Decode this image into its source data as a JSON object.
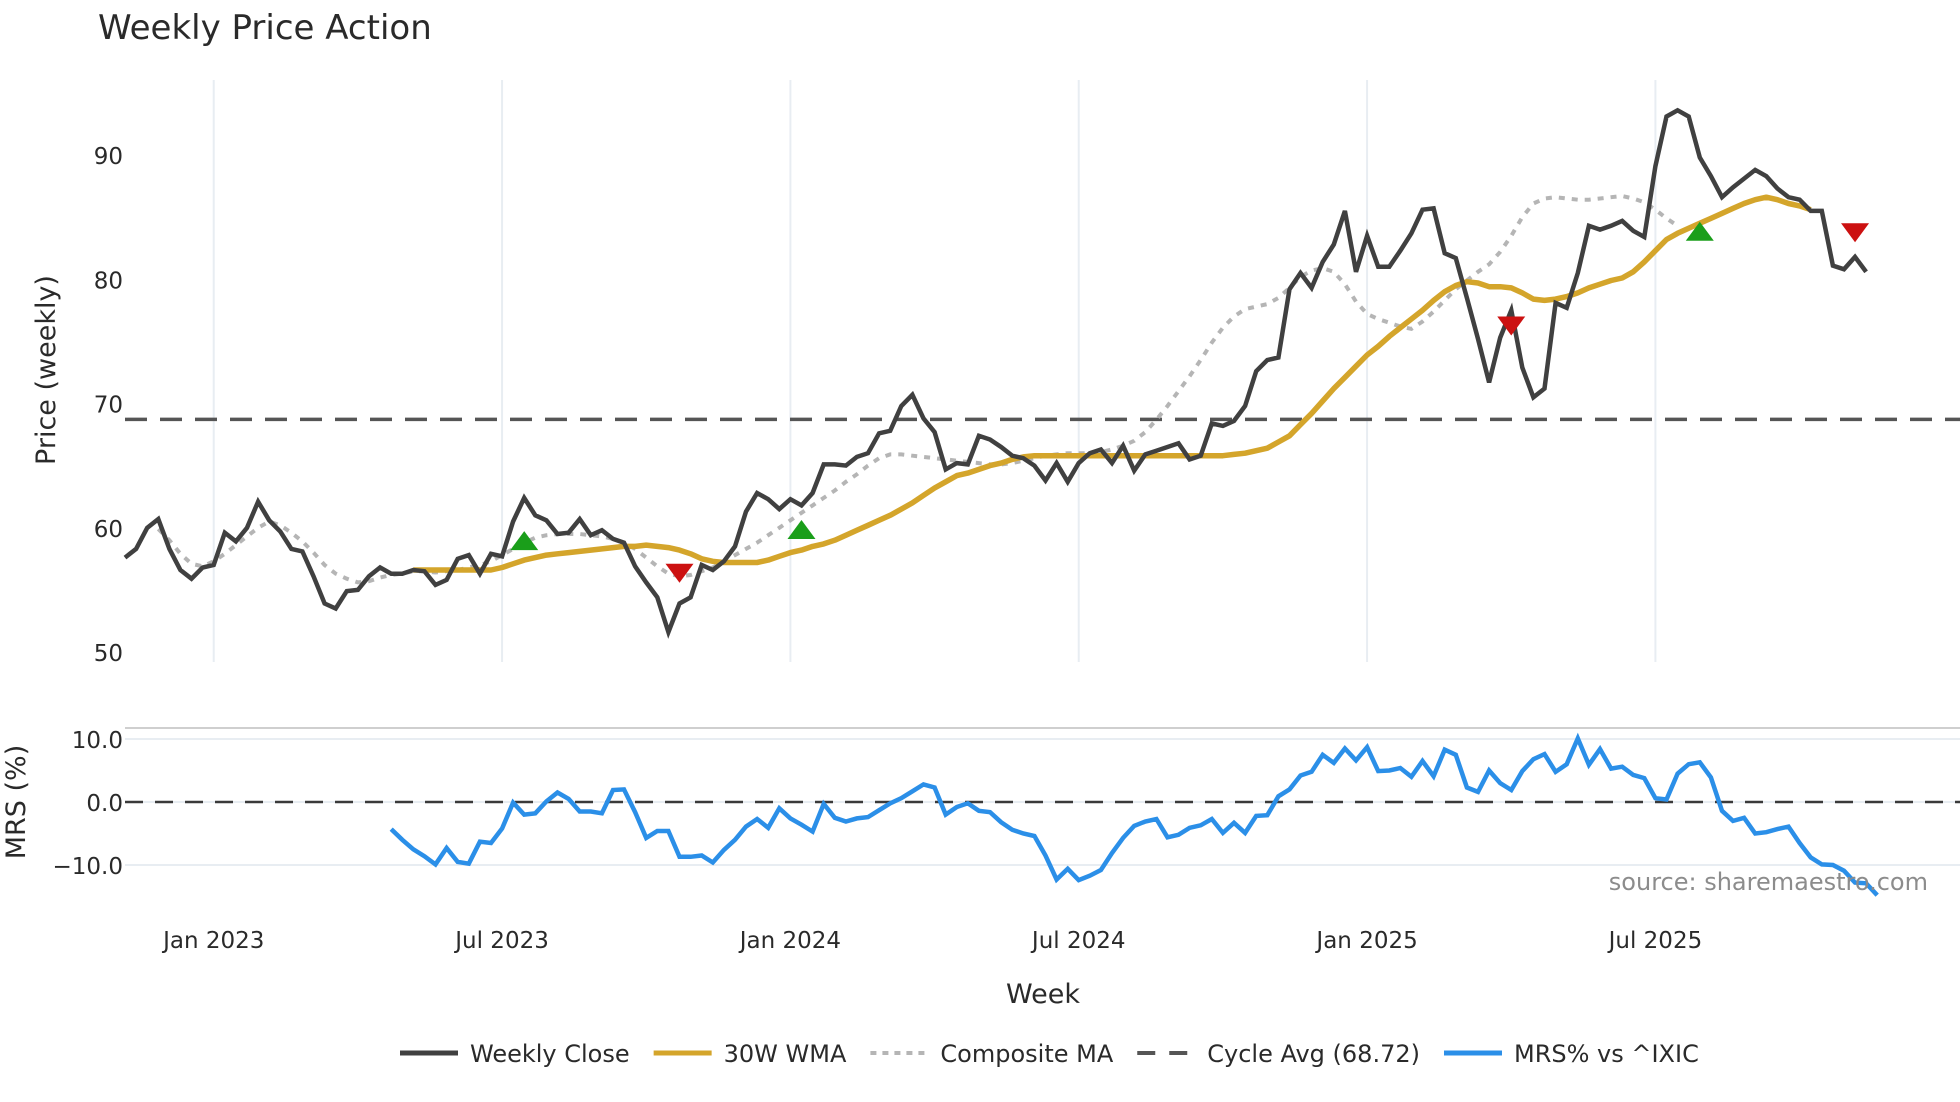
{
  "title": "Weekly Price Action",
  "source_note": "source: sharemaestro.com",
  "xlabel": "Week",
  "price_panel": {
    "ylabel": "Price (weekly)",
    "yticks": [
      "50",
      "60",
      "70",
      "80",
      "90"
    ]
  },
  "mrs_panel": {
    "ylabel": "MRS (%)",
    "yticks": [
      "−10.0",
      "0.0",
      "10.0"
    ]
  },
  "xticks": [
    "Jan 2023",
    "Jul 2023",
    "Jan 2024",
    "Jul 2024",
    "Jan 2025",
    "Jul 2025"
  ],
  "legend": [
    {
      "label": "Weekly Close",
      "color": "#404040",
      "style": "solid"
    },
    {
      "label": "30W WMA",
      "color": "#d4a52b",
      "style": "solid"
    },
    {
      "label": "Composite MA",
      "color": "#b5b5b5",
      "style": "dotted"
    },
    {
      "label": "Cycle Avg (68.72)",
      "color": "#555555",
      "style": "dashed"
    },
    {
      "label": "MRS% vs ^IXIC",
      "color": "#2b8fe8",
      "style": "solid"
    }
  ],
  "colors": {
    "close": "#404040",
    "wma": "#d4a52b",
    "composite": "#b5b5b5",
    "cycle": "#555555",
    "mrs": "#2b8fe8",
    "buy_marker": "#1a9e1a",
    "sell_marker": "#cc1111",
    "grid": "#e8edf2"
  },
  "chart_data": [
    {
      "type": "line",
      "title": "Weekly Price Action",
      "xlabel": "Week",
      "ylabel": "Price (weekly)",
      "ylim": [
        49,
        96
      ],
      "x_start_week_index": 0,
      "x_ticks": {
        "Jan 2023": 8,
        "Jul 2023": 34,
        "Jan 2024": 60,
        "Jul 2024": 86,
        "Jan 2025": 112,
        "Jul 2025": 138
      },
      "series": [
        {
          "name": "Weekly Close",
          "start_index": 0,
          "values": [
            57.6,
            58.3,
            60.0,
            60.7,
            58.3,
            56.6,
            55.9,
            56.8,
            57.0,
            59.6,
            58.9,
            60.0,
            62.1,
            60.6,
            59.7,
            58.3,
            58.1,
            56.1,
            53.9,
            53.5,
            54.9,
            55.0,
            56.1,
            56.8,
            56.3,
            56.3,
            56.6,
            56.5,
            55.4,
            55.8,
            57.5,
            57.8,
            56.3,
            57.9,
            57.7,
            60.5,
            62.4,
            61.0,
            60.6,
            59.5,
            59.6,
            60.7,
            59.4,
            59.8,
            59.1,
            58.8,
            56.9,
            55.6,
            54.4,
            51.6,
            53.9,
            54.4,
            57.0,
            56.6,
            57.3,
            58.5,
            61.3,
            62.8,
            62.3,
            61.5,
            62.3,
            61.8,
            62.8,
            65.1,
            65.1,
            65.0,
            65.7,
            66.0,
            67.6,
            67.8,
            69.8,
            70.7,
            68.8,
            67.7,
            64.7,
            65.2,
            65.1,
            67.4,
            67.1,
            66.5,
            65.8,
            65.6,
            65.0,
            63.8,
            65.2,
            63.7,
            65.2,
            66.0,
            66.3,
            65.2,
            66.6,
            64.6,
            65.9,
            66.2,
            66.5,
            66.8,
            65.5,
            65.8,
            68.4,
            68.2,
            68.6,
            69.8,
            72.6,
            73.5,
            73.7,
            79.2,
            80.5,
            79.3,
            81.4,
            82.8,
            85.5,
            80.6,
            83.5,
            81.0,
            81.0,
            82.3,
            83.7,
            85.6,
            85.7,
            82.1,
            81.7,
            78.5,
            75.2,
            71.7,
            75.3,
            77.5,
            72.9,
            70.5,
            71.2,
            78.1,
            77.7,
            80.5,
            84.3,
            84.0,
            84.3,
            84.7,
            83.9,
            83.4,
            89.1,
            93.1,
            93.6,
            93.1,
            89.8,
            88.3,
            86.6,
            87.4,
            88.1,
            88.8,
            88.3,
            87.3,
            86.6,
            86.4,
            85.5,
            85.5,
            81.1,
            80.8,
            81.8,
            80.6
          ]
        },
        {
          "name": "30W WMA",
          "start_index": 26,
          "values": [
            56.6,
            56.6,
            56.6,
            56.6,
            56.6,
            56.6,
            56.6,
            56.6,
            56.8,
            57.1,
            57.4,
            57.6,
            57.8,
            57.9,
            58.0,
            58.1,
            58.2,
            58.3,
            58.4,
            58.5,
            58.5,
            58.6,
            58.5,
            58.4,
            58.2,
            57.9,
            57.5,
            57.3,
            57.2,
            57.2,
            57.2,
            57.2,
            57.4,
            57.7,
            58.0,
            58.2,
            58.5,
            58.7,
            59.0,
            59.4,
            59.8,
            60.2,
            60.6,
            61.0,
            61.5,
            62.0,
            62.6,
            63.2,
            63.7,
            64.2,
            64.4,
            64.7,
            65.0,
            65.2,
            65.5,
            65.7,
            65.8,
            65.8,
            65.8,
            65.8,
            65.8,
            65.8,
            65.8,
            65.8,
            65.8,
            65.8,
            65.8,
            65.8,
            65.8,
            65.8,
            65.8,
            65.8,
            65.8,
            65.8,
            65.9,
            66.0,
            66.2,
            66.4,
            66.9,
            67.4,
            68.3,
            69.2,
            70.2,
            71.2,
            72.1,
            73.0,
            73.9,
            74.6,
            75.4,
            76.1,
            76.8,
            77.5,
            78.3,
            79.0,
            79.5,
            79.8,
            79.7,
            79.4,
            79.4,
            79.3,
            78.9,
            78.4,
            78.3,
            78.4,
            78.6,
            78.9,
            79.3,
            79.6,
            79.9,
            80.1,
            80.6,
            81.4,
            82.3,
            83.2,
            83.7,
            84.1,
            84.5,
            84.9,
            85.3,
            85.7,
            86.1,
            86.4,
            86.6,
            86.4,
            86.1,
            85.9,
            85.6
          ]
        },
        {
          "name": "Composite MA",
          "start_index": 3,
          "values": [
            59.9,
            59.0,
            57.9,
            57.1,
            56.9,
            57.3,
            57.9,
            58.6,
            59.3,
            60.0,
            60.5,
            60.2,
            59.6,
            58.9,
            58.0,
            57.0,
            56.3,
            55.9,
            55.6,
            55.7,
            56.0,
            56.2,
            56.3,
            56.5,
            56.5,
            56.4,
            56.5,
            56.6,
            56.8,
            57.0,
            57.3,
            57.8,
            58.3,
            58.8,
            59.2,
            59.4,
            59.5,
            59.5,
            59.5,
            59.4,
            59.3,
            59.1,
            58.8,
            58.3,
            57.6,
            56.9,
            56.3,
            56.1,
            56.2,
            56.5,
            56.8,
            57.3,
            57.8,
            58.3,
            58.8,
            59.4,
            60.0,
            60.6,
            61.2,
            61.8,
            62.4,
            63.0,
            63.7,
            64.3,
            65.0,
            65.6,
            65.9,
            65.9,
            65.8,
            65.7,
            65.6,
            65.5,
            65.4,
            65.3,
            65.2,
            65.1,
            65.1,
            65.2,
            65.4,
            65.6,
            65.8,
            65.9,
            66.0,
            66.0,
            66.0,
            66.1,
            66.3,
            66.6,
            67.0,
            67.7,
            68.7,
            69.8,
            71.0,
            72.2,
            73.5,
            74.9,
            76.1,
            77.0,
            77.6,
            77.8,
            78.0,
            78.5,
            79.3,
            80.2,
            80.7,
            80.9,
            80.6,
            79.6,
            78.2,
            77.2,
            76.8,
            76.5,
            76.2,
            76.0,
            76.6,
            77.4,
            78.3,
            79.2,
            79.9,
            80.6,
            81.2,
            82.2,
            83.5,
            85.0,
            86.1,
            86.5,
            86.6,
            86.5,
            86.4,
            86.4,
            86.5,
            86.6,
            86.7,
            86.5,
            86.2,
            85.6,
            84.9,
            84.3
          ]
        },
        {
          "name": "Cycle Avg (68.72)",
          "constant": 68.72
        }
      ],
      "markers": {
        "buy": [
          {
            "index": 36,
            "value": 59.0
          },
          {
            "index": 61,
            "value": 59.9
          },
          {
            "index": 142,
            "value": 83.9
          }
        ],
        "sell": [
          {
            "index": 50,
            "value": 56.3
          },
          {
            "index": 125,
            "value": 76.2
          },
          {
            "index": 156,
            "value": 83.7
          }
        ]
      }
    },
    {
      "type": "line",
      "title": "",
      "xlabel": "Week",
      "ylabel": "MRS (%)",
      "ylim": [
        -18,
        12
      ],
      "series": [
        {
          "name": "MRS% vs ^IXIC",
          "start_index": 24,
          "values": [
            -4.3,
            -6.0,
            -7.5,
            -8.6,
            -9.9,
            -7.3,
            -9.5,
            -9.8,
            -6.3,
            -6.5,
            -4.2,
            -0.1,
            -2.0,
            -1.8,
            0.1,
            1.5,
            0.5,
            -1.5,
            -1.5,
            -1.8,
            1.9,
            2.0,
            -1.6,
            -5.7,
            -4.6,
            -4.6,
            -8.7,
            -8.7,
            -8.5,
            -9.6,
            -7.6,
            -6.0,
            -3.9,
            -2.7,
            -4.1,
            -1.0,
            -2.6,
            -3.6,
            -4.7,
            -0.3,
            -2.5,
            -3.1,
            -2.6,
            -2.4,
            -1.3,
            -0.2,
            0.6,
            1.7,
            2.8,
            2.3,
            -2.0,
            -0.8,
            -0.2,
            -1.4,
            -1.6,
            -3.2,
            -4.4,
            -5.0,
            -5.4,
            -8.5,
            -12.3,
            -10.6,
            -12.4,
            -11.7,
            -10.8,
            -8.1,
            -5.7,
            -3.8,
            -3.1,
            -2.7,
            -5.6,
            -5.2,
            -4.1,
            -3.7,
            -2.7,
            -4.9,
            -3.3,
            -4.9,
            -2.2,
            -2.1,
            0.9,
            2.0,
            4.2,
            4.8,
            7.5,
            6.2,
            8.5,
            6.6,
            8.7,
            4.9,
            5.0,
            5.4,
            4.0,
            6.5,
            4.1,
            8.3,
            7.5,
            2.3,
            1.6,
            5.0,
            3.0,
            1.9,
            4.9,
            6.8,
            7.6,
            4.8,
            6.0,
            10.1,
            5.9,
            8.4,
            5.3,
            5.6,
            4.3,
            3.8,
            0.6,
            0.4,
            4.5,
            6.0,
            6.3,
            3.9,
            -1.4,
            -3.0,
            -2.5,
            -5.0,
            -4.8,
            -4.3,
            -3.9,
            -6.5,
            -8.8,
            -9.9,
            -10.0,
            -10.9,
            -12.8,
            -12.9,
            -14.8
          ]
        },
        {
          "name": "Zero line",
          "constant": 0.0
        }
      ]
    }
  ]
}
